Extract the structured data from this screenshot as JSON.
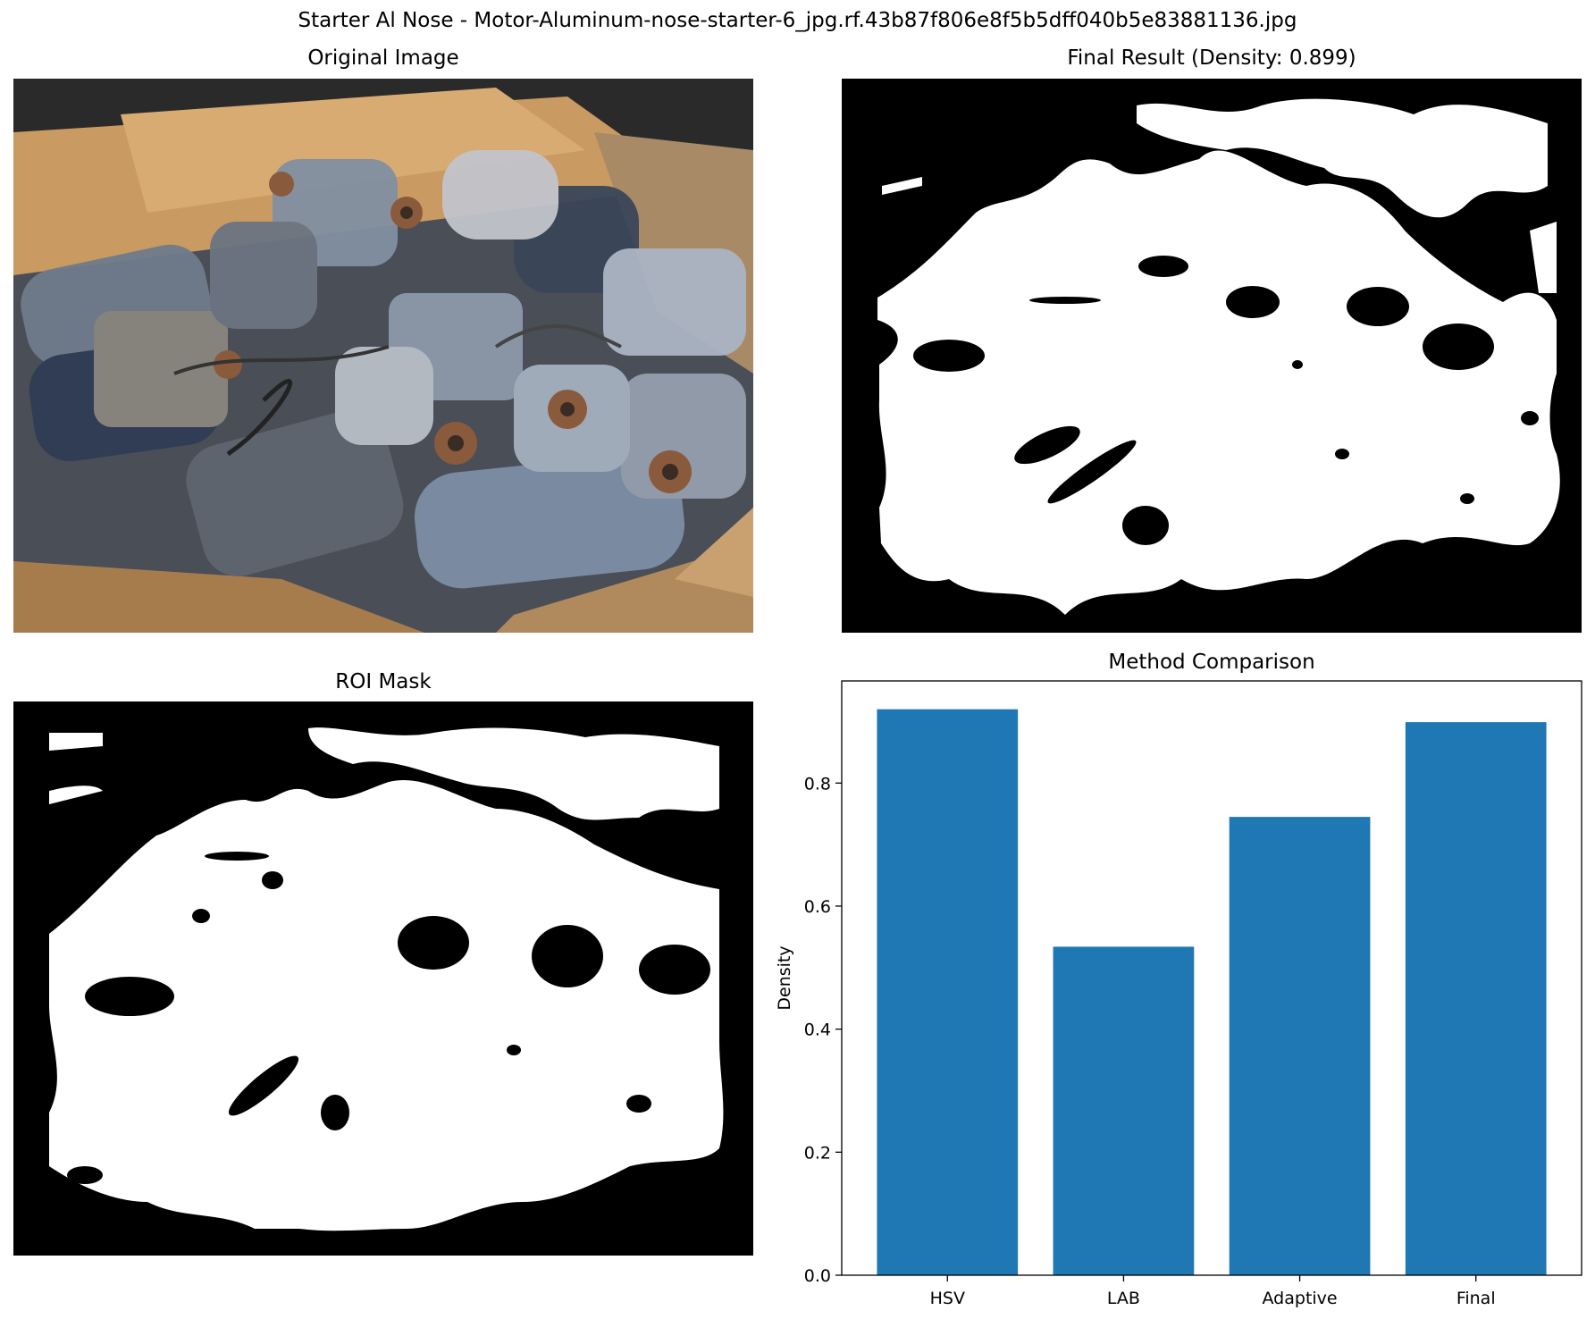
{
  "suptitle": "Starter Al Nose - Motor-Aluminum-nose-starter-6_jpg.rf.43b87f806e8f5b5dff040b5e83881136.jpg",
  "panels": {
    "original": {
      "title": "Original Image"
    },
    "final": {
      "title": "Final Result (Density: 0.899)"
    },
    "roi": {
      "title": "ROI Mask"
    },
    "comparison": {
      "title": "Method Comparison"
    }
  },
  "colors": {
    "bar": "#1f77b4",
    "mask_on": "#ffffff",
    "mask_off": "#000000"
  },
  "chart_data": {
    "type": "bar",
    "title": "Method Comparison",
    "categories": [
      "HSV",
      "LAB",
      "Adaptive",
      "Final"
    ],
    "values": [
      0.92,
      0.534,
      0.745,
      0.899
    ],
    "xlabel": "",
    "ylabel": "Density",
    "ylim": [
      0,
      0.966
    ],
    "yticks": [
      0.0,
      0.2,
      0.4,
      0.6,
      0.8
    ],
    "ytick_labels": [
      "0.0",
      "0.2",
      "0.4",
      "0.6",
      "0.8"
    ],
    "grid": false,
    "legend": "none"
  }
}
